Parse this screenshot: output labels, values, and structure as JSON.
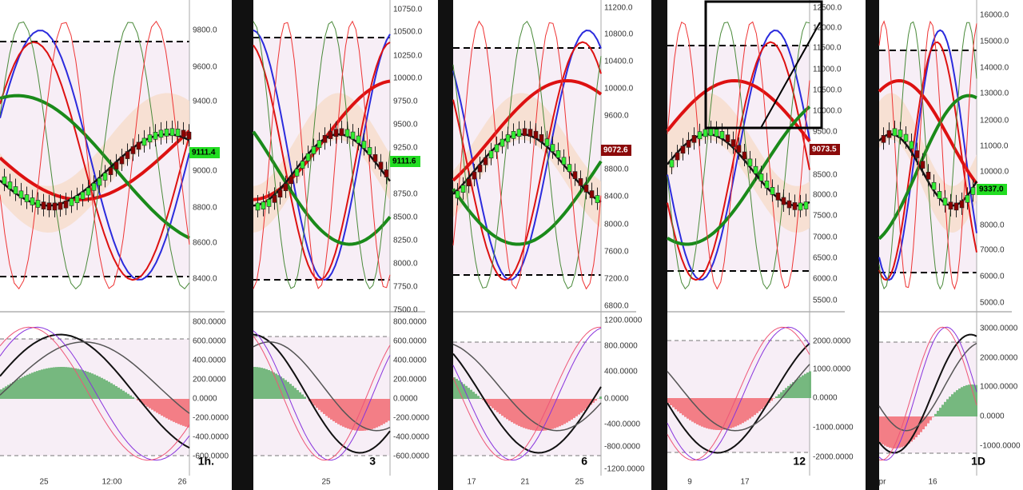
{
  "panels": [
    {
      "timeframe": "1h.",
      "price_axis": [
        "9800.0",
        "9600.0",
        "9400.0",
        "9000.0",
        "8800.0",
        "8600.0",
        "8400.0"
      ],
      "price_tag": "9111.4",
      "tag_color": "#22dd22",
      "osc_axis": [
        "800.0000",
        "600.0000",
        "400.0000",
        "200.0000",
        "0.0000",
        "-200.0000",
        "-400.0000",
        "-600.0000"
      ],
      "x_labels": [
        "25",
        "12:00",
        "26"
      ]
    },
    {
      "timeframe": "3",
      "price_axis": [
        "10750.0",
        "10500.0",
        "10250.0",
        "10000.0",
        "9750.0",
        "9500.0",
        "9250.0",
        "8750.0",
        "8500.0",
        "8250.0",
        "8000.0",
        "7750.0",
        "7500.0"
      ],
      "price_tag": "9111.6",
      "tag_color": "#22dd22",
      "osc_axis": [
        "800.0000",
        "600.0000",
        "400.0000",
        "200.0000",
        "0.0000",
        "-200.0000",
        "-400.0000",
        "-600.0000"
      ],
      "x_labels": [
        "25"
      ]
    },
    {
      "timeframe": "6",
      "price_axis": [
        "11200.0",
        "10800.0",
        "10400.0",
        "10000.0",
        "9600.0",
        "8800.0",
        "8400.0",
        "8000.0",
        "7600.0",
        "7200.0",
        "6800.0"
      ],
      "price_tag": "9072.6",
      "tag_color": "#8b0a0a",
      "osc_axis": [
        "1200.0000",
        "800.0000",
        "400.0000",
        "0.0000",
        "-400.0000",
        "-800.0000",
        "-1200.0000"
      ],
      "x_labels": [
        "17",
        "21",
        "25"
      ]
    },
    {
      "timeframe": "12",
      "price_axis": [
        "12500.0",
        "12000.0",
        "11500.0",
        "11000.0",
        "10500.0",
        "10000.0",
        "9500.0",
        "8500.0",
        "8000.0",
        "7500.0",
        "7000.0",
        "6500.0",
        "6000.0",
        "5500.0"
      ],
      "price_tag": "9073.5",
      "tag_color": "#8b0a0a",
      "osc_axis": [
        "2000.0000",
        "1000.0000",
        "0.0000",
        "-1000.0000",
        "-2000.0000"
      ],
      "x_labels": [
        "9",
        "17"
      ]
    },
    {
      "timeframe": "1D",
      "price_axis": [
        "16000.0",
        "15000.0",
        "14000.0",
        "13000.0",
        "12000.0",
        "11000.0",
        "10000.0",
        "8000.0",
        "7000.0",
        "6000.0",
        "5000.0"
      ],
      "price_tag": "9337.0",
      "tag_color": "#22dd22",
      "osc_axis": [
        "3000.0000",
        "2000.0000",
        "1000.0000",
        "0.0000",
        "-1000.0000"
      ],
      "x_labels": [
        "pr",
        "16"
      ]
    }
  ]
}
